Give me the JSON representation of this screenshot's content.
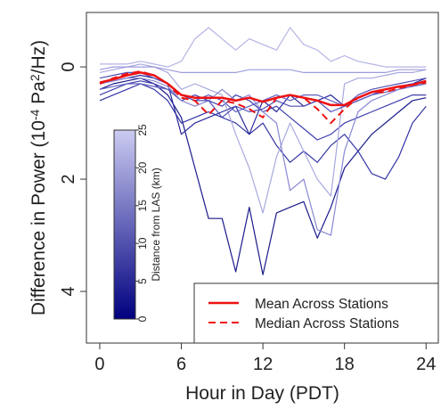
{
  "chart_data": {
    "type": "line",
    "xlabel": "Hour in Day (PDT)",
    "ylabel_parts": [
      "Difference in Power (10",
      "-4",
      " Pa",
      "2",
      "/Hz)"
    ],
    "x": [
      0,
      1,
      2,
      3,
      4,
      5,
      6,
      7,
      8,
      9,
      10,
      11,
      12,
      13,
      14,
      15,
      16,
      17,
      18,
      19,
      20,
      21,
      22,
      23,
      24
    ],
    "xlim": [
      -0.98,
      24.9
    ],
    "xticks": [
      0,
      6,
      12,
      18,
      24
    ],
    "ylim": [
      -0.97,
      4.92
    ],
    "yticks": [
      0,
      2,
      4
    ],
    "y_inverted": true,
    "series": [
      {
        "color": "#1a1a8c",
        "values": [
          0.4,
          0.3,
          0.25,
          0.2,
          0.3,
          0.5,
          0.9,
          1.8,
          2.7,
          2.7,
          3.65,
          2.5,
          3.7,
          2.6,
          2.5,
          2.4,
          3.05,
          2.5,
          1.8,
          1.5,
          1.2,
          1.0,
          0.8,
          0.6,
          0.55
        ]
      },
      {
        "color": "#3535a6",
        "values": [
          0.6,
          0.5,
          0.4,
          0.3,
          0.4,
          0.6,
          1.0,
          0.9,
          0.8,
          0.9,
          1.0,
          1.2,
          1.0,
          1.4,
          1.7,
          1.5,
          1.7,
          1.4,
          1.2,
          1.5,
          1.9,
          2.0,
          1.6,
          1.0,
          0.7
        ]
      },
      {
        "color": "#2a2a9c",
        "values": [
          0.3,
          0.25,
          0.2,
          0.15,
          0.2,
          0.3,
          1.2,
          1.0,
          0.9,
          0.8,
          0.7,
          1.2,
          0.6,
          0.8,
          0.5,
          0.7,
          0.6,
          0.5,
          0.7,
          0.6,
          0.5,
          0.4,
          0.35,
          0.3,
          0.2
        ]
      },
      {
        "color": "#4040b0",
        "values": [
          0.5,
          0.4,
          0.3,
          0.25,
          0.3,
          0.4,
          0.6,
          0.5,
          0.6,
          0.7,
          0.5,
          0.6,
          0.8,
          0.7,
          0.9,
          1.1,
          1.3,
          1.2,
          1.0,
          0.9,
          0.8,
          0.7,
          0.6,
          0.5,
          0.5
        ]
      },
      {
        "color": "#6060c0",
        "values": [
          0.4,
          0.35,
          0.3,
          0.3,
          0.35,
          0.4,
          0.5,
          0.6,
          0.5,
          0.6,
          0.8,
          0.7,
          0.6,
          0.5,
          0.6,
          0.5,
          0.5,
          0.6,
          0.7,
          0.6,
          0.5,
          0.45,
          0.4,
          0.35,
          0.3
        ]
      },
      {
        "color": "#a8a8e0",
        "values": [
          0.1,
          0.05,
          0,
          -0.05,
          0,
          0.1,
          0.4,
          0.3,
          0.4,
          0.5,
          1.2,
          1.8,
          2.6,
          1.6,
          1.0,
          1.5,
          2.0,
          2.3,
          0.3,
          0.2,
          0.2,
          0.15,
          0.1,
          0.1,
          0.05
        ]
      },
      {
        "color": "#b4b4e6",
        "values": [
          -0.05,
          -0.05,
          -0.05,
          -0.1,
          -0.05,
          0,
          -0.1,
          -0.5,
          -0.7,
          -0.5,
          -0.3,
          -0.5,
          -0.4,
          -0.3,
          -0.7,
          -0.4,
          -0.3,
          -0.1,
          -0.2,
          -0.1,
          -0.05,
          0,
          0,
          0,
          0
        ]
      },
      {
        "color": "#9c9cdc",
        "values": [
          0.05,
          0,
          0,
          0,
          0,
          0.05,
          0.1,
          0.1,
          0.1,
          0.1,
          0.1,
          0.05,
          0.05,
          0.05,
          0.05,
          0.1,
          0.1,
          0.1,
          0.1,
          0.1,
          0.1,
          0.1,
          0.05,
          0.05,
          0.05
        ]
      },
      {
        "color": "#8888d2",
        "values": [
          0.3,
          0.25,
          0.2,
          0.2,
          0.25,
          0.35,
          0.6,
          0.7,
          0.6,
          0.4,
          0.6,
          0.5,
          0.8,
          1.0,
          2.2,
          2.0,
          2.9,
          3.0,
          1.5,
          0.8,
          0.6,
          0.5,
          0.4,
          0.3,
          0.3
        ]
      },
      {
        "color": "#5050b8",
        "values": [
          0.2,
          0.15,
          0.1,
          0.1,
          0.2,
          0.3,
          0.5,
          0.6,
          0.6,
          0.9,
          0.7,
          0.8,
          0.75,
          0.6,
          0.7,
          0.7,
          0.6,
          0.8,
          0.7,
          0.5,
          0.4,
          0.35,
          0.3,
          0.25,
          0.2
        ]
      },
      {
        "name": "Mean Across Stations",
        "color": "#ee1111",
        "dash": false,
        "width": 2.5,
        "values": [
          0.28,
          0.22,
          0.15,
          0.1,
          0.15,
          0.3,
          0.5,
          0.55,
          0.55,
          0.55,
          0.6,
          0.55,
          0.62,
          0.55,
          0.5,
          0.55,
          0.6,
          0.68,
          0.68,
          0.55,
          0.45,
          0.4,
          0.35,
          0.32,
          0.25
        ]
      },
      {
        "name": "Median Across Stations",
        "color": "#ee1111",
        "dash": true,
        "width": 2,
        "values": [
          0.3,
          0.2,
          0.12,
          0.08,
          0.15,
          0.3,
          0.55,
          0.6,
          0.85,
          0.6,
          0.65,
          0.75,
          0.9,
          0.55,
          0.5,
          0.55,
          0.75,
          1.0,
          0.75,
          0.55,
          0.45,
          0.45,
          0.38,
          0.32,
          0.28
        ]
      }
    ],
    "colorbar": {
      "label": "Distance from LAS (km)",
      "lim": [
        0,
        25
      ],
      "ticks": [
        0,
        5,
        10,
        15,
        20,
        25
      ],
      "colors": [
        "#00007f",
        "#cbcbf2"
      ]
    }
  }
}
